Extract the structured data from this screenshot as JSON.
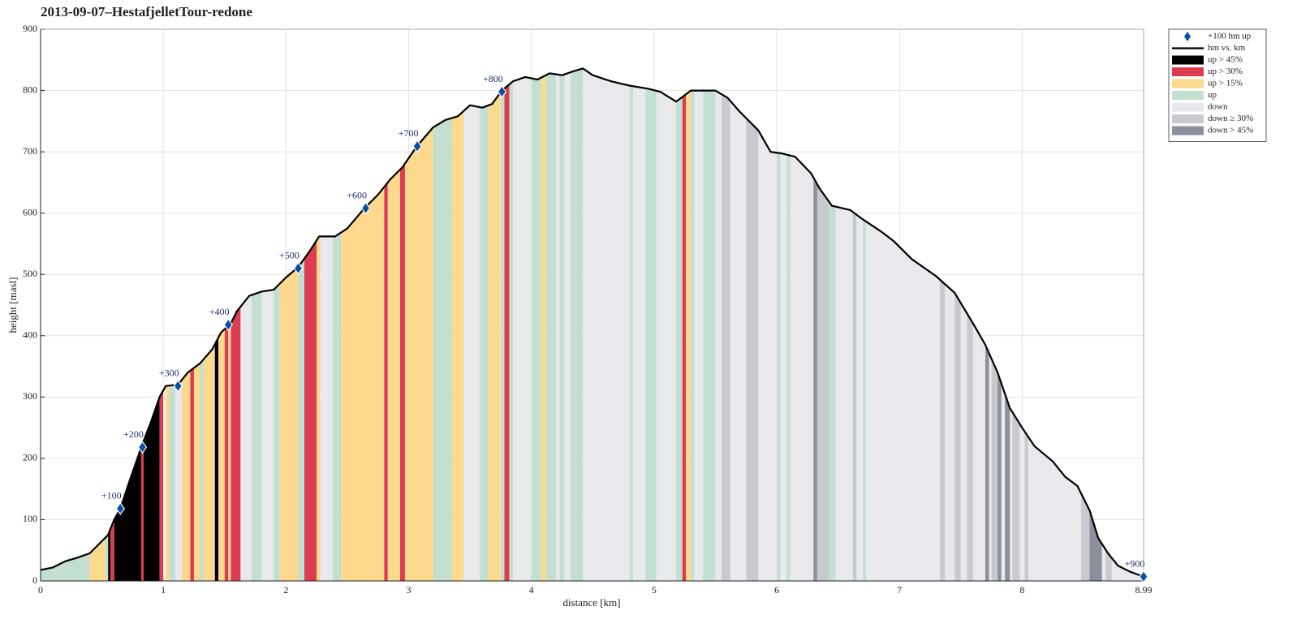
{
  "chart_data": {
    "type": "profile",
    "title": "2013-09-07–HestafjelletTour-redone",
    "xlabel": "distance [km]",
    "ylabel": "height [masl]",
    "xlim": [
      0,
      8.99
    ],
    "ylim": [
      0,
      900
    ],
    "xticks": [
      0,
      1,
      2,
      3,
      4,
      5,
      6,
      7,
      8,
      8.99
    ],
    "yticks": [
      0,
      100,
      200,
      300,
      400,
      500,
      600,
      700,
      800,
      900
    ],
    "grid": true,
    "legend": "outside-upper-right",
    "markers": {
      "name": "+100 hm up",
      "color": "#0b4ea2",
      "x": [
        0.65,
        0.83,
        1.12,
        1.53,
        2.1,
        2.65,
        3.07,
        3.76,
        8.99
      ],
      "values": [
        118,
        218,
        318,
        418,
        510,
        608,
        709,
        798,
        7
      ],
      "labels": [
        "+100",
        "+200",
        "+300",
        "+400",
        "+500",
        "+600",
        "+700",
        "+800",
        "+900"
      ]
    },
    "profile": {
      "name": "hm vs. km",
      "color": "#000000",
      "x": [
        0,
        0.1,
        0.2,
        0.3,
        0.4,
        0.5,
        0.55,
        0.6,
        0.65,
        0.72,
        0.82,
        0.9,
        0.97,
        1.02,
        1.12,
        1.2,
        1.3,
        1.4,
        1.47,
        1.55,
        1.6,
        1.7,
        1.8,
        1.9,
        2.0,
        2.1,
        2.2,
        2.27,
        2.4,
        2.5,
        2.64,
        2.75,
        2.85,
        2.95,
        3.07,
        3.2,
        3.3,
        3.4,
        3.5,
        3.6,
        3.68,
        3.76,
        3.85,
        3.95,
        4.05,
        4.15,
        4.25,
        4.35,
        4.42,
        4.5,
        4.65,
        4.8,
        4.95,
        5.05,
        5.18,
        5.3,
        5.5,
        5.6,
        5.7,
        5.85,
        5.95,
        6.05,
        6.15,
        6.28,
        6.35,
        6.45,
        6.6,
        6.7,
        6.85,
        6.95,
        7.1,
        7.3,
        7.45,
        7.6,
        7.7,
        7.8,
        7.9,
        8.0,
        8.1,
        8.25,
        8.35,
        8.45,
        8.55,
        8.62,
        8.7,
        8.78,
        8.88,
        8.99
      ],
      "values": [
        18,
        22,
        32,
        38,
        45,
        65,
        75,
        100,
        118,
        160,
        218,
        260,
        300,
        318,
        320,
        340,
        355,
        378,
        405,
        420,
        440,
        465,
        472,
        475,
        495,
        512,
        540,
        562,
        562,
        575,
        608,
        630,
        655,
        675,
        710,
        740,
        752,
        758,
        776,
        772,
        778,
        800,
        815,
        822,
        818,
        828,
        825,
        832,
        836,
        825,
        815,
        808,
        803,
        798,
        782,
        800,
        800,
        788,
        765,
        735,
        700,
        697,
        692,
        665,
        640,
        612,
        605,
        590,
        570,
        555,
        525,
        497,
        470,
        420,
        385,
        340,
        282,
        250,
        220,
        195,
        170,
        155,
        115,
        70,
        45,
        25,
        15,
        7
      ]
    },
    "bands": [
      {
        "name": "up > 45%",
        "color": "#000000",
        "intervals": [
          [
            0.55,
            0.57
          ],
          [
            0.6,
            0.82
          ],
          [
            0.84,
            0.97
          ],
          [
            1.42,
            1.45
          ]
        ]
      },
      {
        "name": "up > 30%",
        "color": "#dc3c50",
        "intervals": [
          [
            0.57,
            0.6
          ],
          [
            0.82,
            0.84
          ],
          [
            0.97,
            1.0
          ],
          [
            1.22,
            1.25
          ],
          [
            1.5,
            1.53
          ],
          [
            1.55,
            1.63
          ],
          [
            2.15,
            2.25
          ],
          [
            2.8,
            2.83
          ],
          [
            2.93,
            2.97
          ],
          [
            3.78,
            3.82
          ],
          [
            5.23,
            5.26
          ]
        ]
      },
      {
        "name": "up > 15%",
        "color": "#fcd98c",
        "intervals": [
          [
            0.4,
            0.53
          ],
          [
            1.02,
            1.05
          ],
          [
            1.15,
            1.22
          ],
          [
            1.25,
            1.3
          ],
          [
            1.33,
            1.42
          ],
          [
            1.45,
            1.5
          ],
          [
            1.53,
            1.55
          ],
          [
            1.95,
            2.1
          ],
          [
            2.25,
            2.28
          ],
          [
            2.45,
            2.8
          ],
          [
            2.83,
            2.93
          ],
          [
            2.97,
            3.2
          ],
          [
            3.35,
            3.45
          ],
          [
            3.65,
            3.75
          ],
          [
            4.08,
            4.12
          ],
          [
            5.26,
            5.3
          ]
        ]
      },
      {
        "name": "up",
        "color": "#c2dfcf",
        "intervals": [
          [
            0,
            0.4
          ],
          [
            0.53,
            0.55
          ],
          [
            1.05,
            1.1
          ],
          [
            1.3,
            1.33
          ],
          [
            1.72,
            1.8
          ],
          [
            1.9,
            1.95
          ],
          [
            2.1,
            2.15
          ],
          [
            2.38,
            2.45
          ],
          [
            3.2,
            3.35
          ],
          [
            3.58,
            3.65
          ],
          [
            3.75,
            3.78
          ],
          [
            3.82,
            3.85
          ],
          [
            4.0,
            4.08
          ],
          [
            4.12,
            4.2
          ],
          [
            4.23,
            4.27
          ],
          [
            4.32,
            4.42
          ],
          [
            4.8,
            4.83
          ],
          [
            4.93,
            5.02
          ],
          [
            5.18,
            5.23
          ],
          [
            5.3,
            5.33
          ],
          [
            5.4,
            5.5
          ],
          [
            6.0,
            6.03
          ],
          [
            6.08,
            6.11
          ],
          [
            6.42,
            6.48
          ],
          [
            6.7,
            6.73
          ]
        ]
      },
      {
        "name": "down",
        "color": "#e8e9ec",
        "intervals": [
          [
            1.0,
            1.02
          ],
          [
            1.1,
            1.15
          ],
          [
            1.63,
            1.72
          ],
          [
            1.8,
            1.9
          ],
          [
            2.28,
            2.38
          ],
          [
            3.45,
            3.58
          ],
          [
            3.85,
            4.0
          ],
          [
            4.2,
            4.23
          ],
          [
            4.27,
            4.32
          ],
          [
            4.42,
            4.8
          ],
          [
            4.83,
            4.93
          ],
          [
            5.02,
            5.18
          ],
          [
            5.33,
            5.4
          ],
          [
            5.5,
            5.55
          ],
          [
            5.62,
            5.75
          ],
          [
            5.85,
            6.0
          ],
          [
            6.03,
            6.08
          ],
          [
            6.11,
            6.3
          ],
          [
            6.48,
            6.62
          ],
          [
            6.65,
            6.7
          ],
          [
            6.73,
            7.33
          ],
          [
            7.37,
            7.45
          ],
          [
            7.5,
            7.55
          ],
          [
            7.6,
            7.7
          ],
          [
            7.73,
            7.75
          ],
          [
            7.83,
            7.86
          ],
          [
            7.9,
            7.92
          ],
          [
            7.98,
            8.02
          ],
          [
            8.05,
            8.48
          ],
          [
            8.65,
            8.68
          ],
          [
            8.73,
            8.99
          ]
        ]
      },
      {
        "name": "down ≥ 30%",
        "color": "#c8cad1",
        "intervals": [
          [
            5.55,
            5.62
          ],
          [
            5.75,
            5.85
          ],
          [
            6.33,
            6.42
          ],
          [
            6.62,
            6.65
          ],
          [
            7.33,
            7.37
          ],
          [
            7.45,
            7.5
          ],
          [
            7.55,
            7.6
          ],
          [
            7.75,
            7.8
          ],
          [
            7.92,
            7.98
          ],
          [
            8.02,
            8.05
          ],
          [
            8.48,
            8.55
          ],
          [
            8.68,
            8.73
          ]
        ]
      },
      {
        "name": "down > 45%",
        "color": "#8c909c",
        "intervals": [
          [
            6.3,
            6.33
          ],
          [
            7.7,
            7.73
          ],
          [
            7.8,
            7.83
          ],
          [
            7.86,
            7.9
          ],
          [
            8.55,
            8.65
          ]
        ]
      }
    ]
  }
}
